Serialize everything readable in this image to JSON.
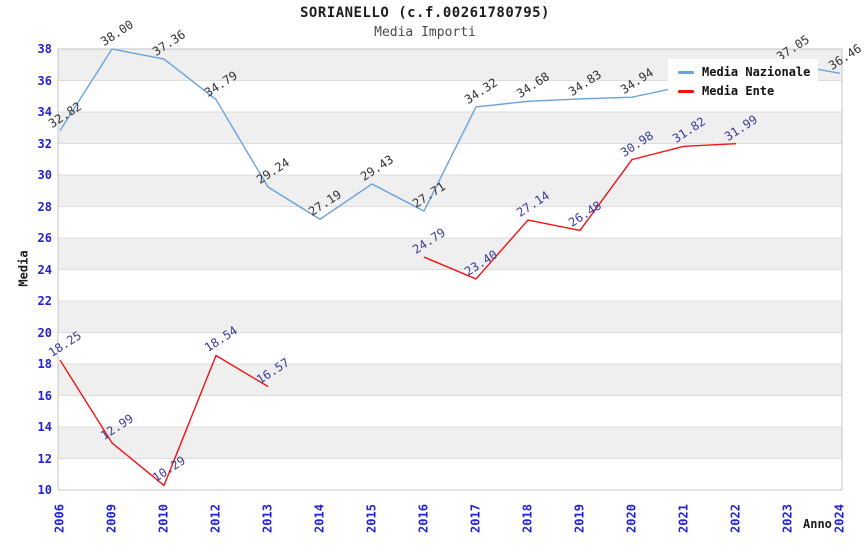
{
  "header": {
    "title": "SORIANELLO (c.f.00261780795)",
    "subtitle": "Media Importi"
  },
  "axes": {
    "y_title": "Media",
    "x_title": "Anno"
  },
  "legend": {
    "position": "top-right",
    "items": [
      {
        "label": "Media Nazionale",
        "color": "#69a3dc"
      },
      {
        "label": "Media Ente",
        "color": "#f01414"
      }
    ]
  },
  "chart_data": {
    "type": "line",
    "title": "SORIANELLO (c.f.00261780795)",
    "subtitle": "Media Importi",
    "xlabel": "Anno",
    "ylabel": "Media",
    "categories": [
      "2006",
      "2009",
      "2010",
      "2012",
      "2013",
      "2014",
      "2015",
      "2016",
      "2017",
      "2018",
      "2019",
      "2020",
      "2021",
      "2022",
      "2023",
      "2024"
    ],
    "series": [
      {
        "name": "Media Nazionale",
        "color": "#69a3dc",
        "label_color": "#333333",
        "connect_nulls": true,
        "values": [
          32.82,
          38.0,
          37.36,
          34.79,
          29.24,
          27.19,
          29.43,
          27.71,
          34.32,
          34.68,
          34.83,
          34.94,
          null,
          null,
          37.05,
          36.46
        ]
      },
      {
        "name": "Media Ente",
        "color": "#f01414",
        "label_color": "#3a3a9c",
        "connect_nulls": false,
        "values": [
          18.25,
          12.99,
          10.29,
          18.54,
          16.57,
          null,
          null,
          24.79,
          23.4,
          27.14,
          26.48,
          30.98,
          31.82,
          31.99,
          null,
          null
        ]
      }
    ],
    "ylim": [
      10,
      38
    ],
    "ytick_step": 2,
    "grid": "horizontal gridlines with alternating gray bands",
    "legend_position": "top-right",
    "tick_label_color": "#2222d4",
    "band_color": "#efefef",
    "gridline_color": "#dddddd",
    "plot_border_color": "#c6c6c6"
  }
}
